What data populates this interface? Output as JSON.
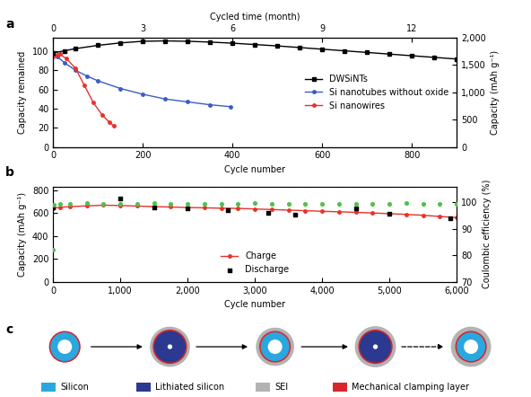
{
  "chart_data": [
    {
      "type": "line",
      "title": "a",
      "xlabel": "Cycle number",
      "ylabel": "Capacity remained",
      "x2label": "Cycled time (month)",
      "y2label": "Capacity (mAh g⁻¹)",
      "xlim": [
        0,
        900
      ],
      "xticks": [
        0,
        200,
        400,
        600,
        800
      ],
      "x2lim": [
        0,
        13.5
      ],
      "x2ticks": [
        0,
        3,
        6,
        9,
        12
      ],
      "ylim": [
        0,
        114
      ],
      "yticks": [
        0,
        20,
        40,
        60,
        80,
        100
      ],
      "y2lim": [
        0,
        2000
      ],
      "y2ticks": [
        0,
        500,
        {
          "value": 1000,
          "label": "1,000"
        },
        {
          "value": 1500,
          "label": "1,500"
        },
        {
          "value": 2000,
          "label": "2,000"
        }
      ],
      "grid": false,
      "legend": "center right",
      "series": [
        {
          "name": "DWSiNTs",
          "color": "#000000",
          "axis": "y2",
          "marker": "square",
          "line_style": "solid",
          "x": [
            0,
            25,
            50,
            100,
            150,
            200,
            250,
            300,
            350,
            400,
            450,
            500,
            550,
            600,
            650,
            700,
            750,
            800,
            850,
            900
          ],
          "values": [
            1720,
            1760,
            1800,
            1860,
            1905,
            1935,
            1942,
            1935,
            1920,
            1900,
            1875,
            1850,
            1820,
            1790,
            1760,
            1730,
            1700,
            1670,
            1640,
            1610
          ]
        },
        {
          "name": "Si nanotubes without oxide",
          "color": "#3a5cc6",
          "marker": "circle",
          "line_style": "solid",
          "x": [
            0,
            10,
            25,
            50,
            75,
            100,
            150,
            200,
            250,
            300,
            350,
            395
          ],
          "values": [
            98,
            94,
            88,
            80,
            74,
            69,
            61,
            55,
            50,
            47,
            44,
            42
          ]
        },
        {
          "name": "Si nanowires",
          "color": "#e8312b",
          "marker": "circle",
          "line_style": "solid",
          "x": [
            0,
            10,
            15,
            30,
            50,
            70,
            90,
            110,
            125,
            135
          ],
          "values": [
            94,
            96,
            97,
            92,
            82,
            64,
            46,
            33,
            26,
            22
          ]
        }
      ]
    },
    {
      "type": "line",
      "title": "b",
      "xlabel": "Cycle number",
      "ylabel": "Capacity (mAh g⁻¹)",
      "y2label": "Coulombic efficiency (%)",
      "xlim": [
        0,
        6000
      ],
      "xticks": [
        0,
        {
          "value": 1000,
          "label": "1,000"
        },
        {
          "value": 2000,
          "label": "2,000"
        },
        {
          "value": 3000,
          "label": "3,000"
        },
        {
          "value": 4000,
          "label": "4,000"
        },
        {
          "value": 5000,
          "label": "5,000"
        },
        {
          "value": 6000,
          "label": "6,000"
        }
      ],
      "ylim": [
        0,
        830
      ],
      "yticks": [
        0,
        200,
        400,
        600,
        800
      ],
      "y2lim": [
        70,
        106
      ],
      "y2ticks": [
        70,
        80,
        90,
        100
      ],
      "grid": false,
      "legend": "lower center",
      "series": [
        {
          "type": "scatter",
          "color": "#4cc24c",
          "axis": "y2",
          "marker": "circle",
          "x": [
            0,
            10,
            100,
            250,
            500,
            750,
            1000,
            1250,
            1500,
            1750,
            2000,
            2250,
            2500,
            2750,
            3000,
            3250,
            3500,
            3750,
            4000,
            4250,
            4500,
            4750,
            5000,
            5250,
            5500,
            5750,
            6000
          ],
          "values": [
            82,
            99.0,
            99.6,
            99.5,
            99.7,
            99.4,
            99.6,
            99.5,
            99.7,
            99.6,
            99.4,
            99.5,
            99.6,
            99.5,
            99.7,
            99.4,
            99.5,
            99.6,
            99.3,
            99.5,
            99.6,
            99.4,
            99.5,
            99.7,
            99.4,
            99.5,
            99.6
          ]
        },
        {
          "name": "Charge",
          "type": "line",
          "color": "#e8312b",
          "marker": "circle",
          "line_style": "solid",
          "x": [
            0,
            100,
            250,
            500,
            750,
            1000,
            1250,
            1500,
            1750,
            2000,
            2250,
            2500,
            2750,
            3000,
            3250,
            3500,
            3750,
            4000,
            4250,
            4500,
            4750,
            5000,
            5250,
            5500,
            5750,
            6000
          ],
          "values": [
            640,
            650,
            655,
            662,
            668,
            665,
            660,
            656,
            652,
            648,
            645,
            642,
            640,
            635,
            630,
            625,
            620,
            615,
            610,
            606,
            600,
            594,
            588,
            580,
            570,
            560
          ]
        },
        {
          "name": "Discharge",
          "type": "scatter",
          "color": "#000000",
          "marker": "square",
          "x": [
            0,
            1000,
            1500,
            2000,
            2600,
            3200,
            3600,
            4500,
            5000,
            5900
          ],
          "values": [
            650,
            725,
            648,
            640,
            625,
            598,
            585,
            640,
            592,
            552
          ]
        }
      ]
    }
  ],
  "diagram": {
    "title": "c",
    "legend": [
      {
        "label": "Silicon",
        "color": "#29a8e0"
      },
      {
        "label": "Lithiated silicon",
        "color": "#2b3990"
      },
      {
        "label": "SEI",
        "color": "#b3b3b3"
      },
      {
        "label": "Mechanical clamping layer",
        "color": "#d7262e"
      }
    ]
  }
}
